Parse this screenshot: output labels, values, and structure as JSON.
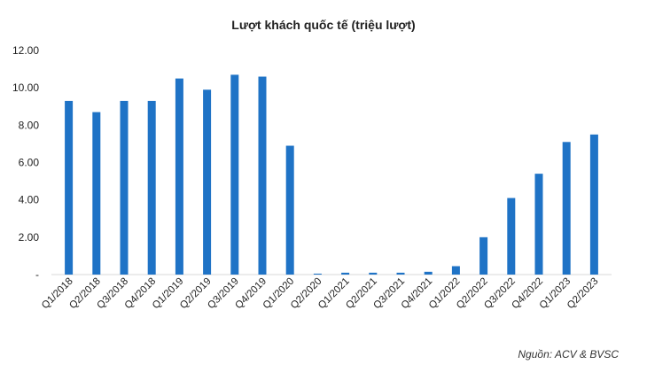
{
  "chart_data": {
    "type": "bar",
    "title": "Lượt khách quốc tế (triệu lượt)",
    "categories": [
      "Q1/2018",
      "Q2/2018",
      "Q3/2018",
      "Q4/2018",
      "Q1/2019",
      "Q2/2019",
      "Q3/2019",
      "Q4/2019",
      "Q1/2020",
      "Q2/2020",
      "Q1/2021",
      "Q2/2021",
      "Q3/2021",
      "Q4/2021",
      "Q1/2022",
      "Q2/2022",
      "Q3/2022",
      "Q4/2022",
      "Q1/2023",
      "Q2/2023"
    ],
    "values": [
      9.3,
      8.7,
      9.3,
      9.3,
      10.5,
      9.9,
      10.7,
      10.6,
      6.9,
      0.05,
      0.1,
      0.1,
      0.1,
      0.15,
      0.45,
      2.0,
      4.1,
      5.4,
      7.1,
      7.5
    ],
    "ylim": [
      0,
      12
    ],
    "yticks": [
      "-",
      "2.00",
      "4.00",
      "6.00",
      "8.00",
      "10.00",
      "12.00"
    ],
    "xlabel": "",
    "ylabel": "",
    "bar_color": "#1f73c6",
    "grid": false,
    "source": "Nguồn: ACV & BVSC"
  }
}
